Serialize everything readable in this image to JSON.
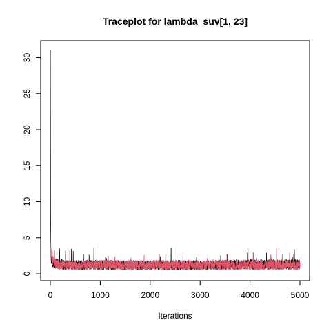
{
  "chart_data": {
    "type": "line",
    "title": "Traceplot for lambda_suv[1, 23]",
    "xlabel": "Iterations",
    "ylabel": "",
    "xlim": [
      0,
      5000
    ],
    "ylim": [
      0,
      31
    ],
    "x_ticks": [
      0,
      1000,
      2000,
      3000,
      4000,
      5000
    ],
    "x_tick_labels": [
      "0",
      "1000",
      "2000",
      "3000",
      "4000",
      "5000"
    ],
    "y_ticks": [
      0,
      5,
      10,
      15,
      20,
      25,
      30
    ],
    "y_tick_labels": [
      "0",
      "5",
      "10",
      "15",
      "20",
      "25",
      "30"
    ],
    "grid": false,
    "legend": false,
    "series": [
      {
        "color": "#000000",
        "iterations": 5000,
        "x": [
          1,
          5,
          10,
          20,
          50,
          100,
          200,
          300,
          500,
          1000,
          2000,
          3000,
          4000,
          5000
        ],
        "values": [
          31.0,
          8.0,
          3.0,
          2.0,
          1.5,
          1.4,
          1.3,
          1.2,
          1.2,
          1.2,
          1.2,
          1.2,
          1.3,
          1.3
        ],
        "typical_range": [
          0.4,
          3.6
        ]
      },
      {
        "color": "#DF536B",
        "iterations": 5000,
        "x": [
          1,
          5,
          10,
          20,
          50,
          100,
          200,
          300,
          500,
          1000,
          2000,
          3000,
          4000,
          5000
        ],
        "values": [
          5.8,
          4.5,
          3.5,
          2.5,
          1.8,
          1.4,
          1.2,
          1.2,
          1.2,
          1.2,
          1.2,
          1.2,
          1.2,
          1.2
        ],
        "typical_range": [
          0.5,
          3.2
        ]
      }
    ]
  }
}
